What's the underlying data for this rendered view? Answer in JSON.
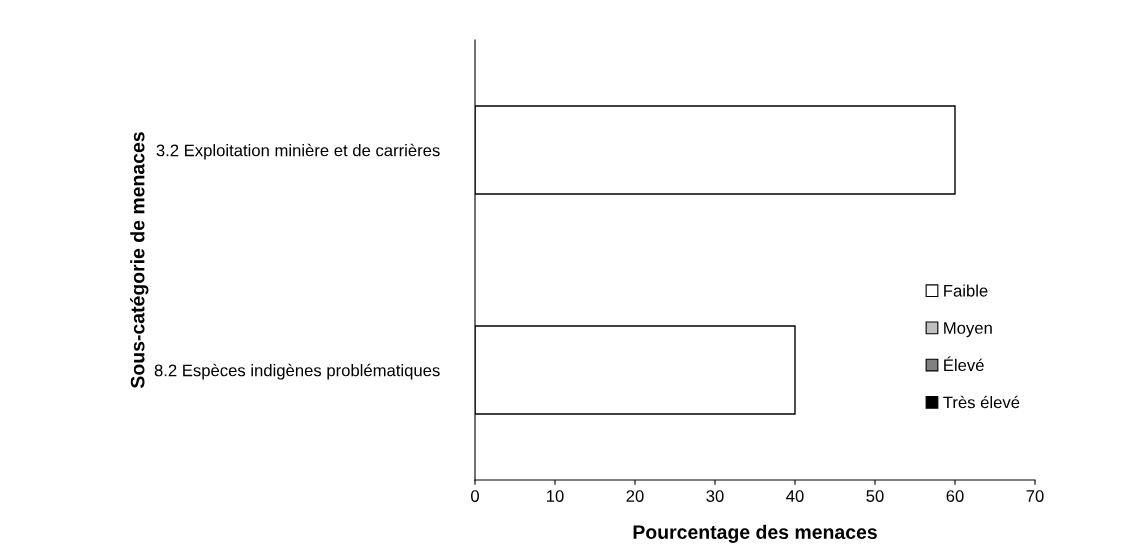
{
  "chart_data": {
    "type": "bar",
    "orientation": "horizontal",
    "stacked": true,
    "categories": [
      "3.2 Exploitation minière et de carrières",
      "8.2 Espèces indigènes problématiques"
    ],
    "series": [
      {
        "name": "Faible",
        "color": "#ffffff",
        "values": [
          60,
          40
        ]
      },
      {
        "name": "Moyen",
        "color": "#c0c0c0",
        "values": [
          0,
          0
        ]
      },
      {
        "name": "Élevé",
        "color": "#808080",
        "values": [
          0,
          0
        ]
      },
      {
        "name": "Très élevé",
        "color": "#000000",
        "values": [
          0,
          0
        ]
      }
    ],
    "xlabel": "Pourcentage des menaces",
    "ylabel": "Sous-catégorie de menaces",
    "xlim": [
      0,
      70
    ],
    "xticks": [
      0,
      10,
      20,
      30,
      40,
      50,
      60,
      70
    ],
    "grid": false,
    "legend": "right"
  }
}
